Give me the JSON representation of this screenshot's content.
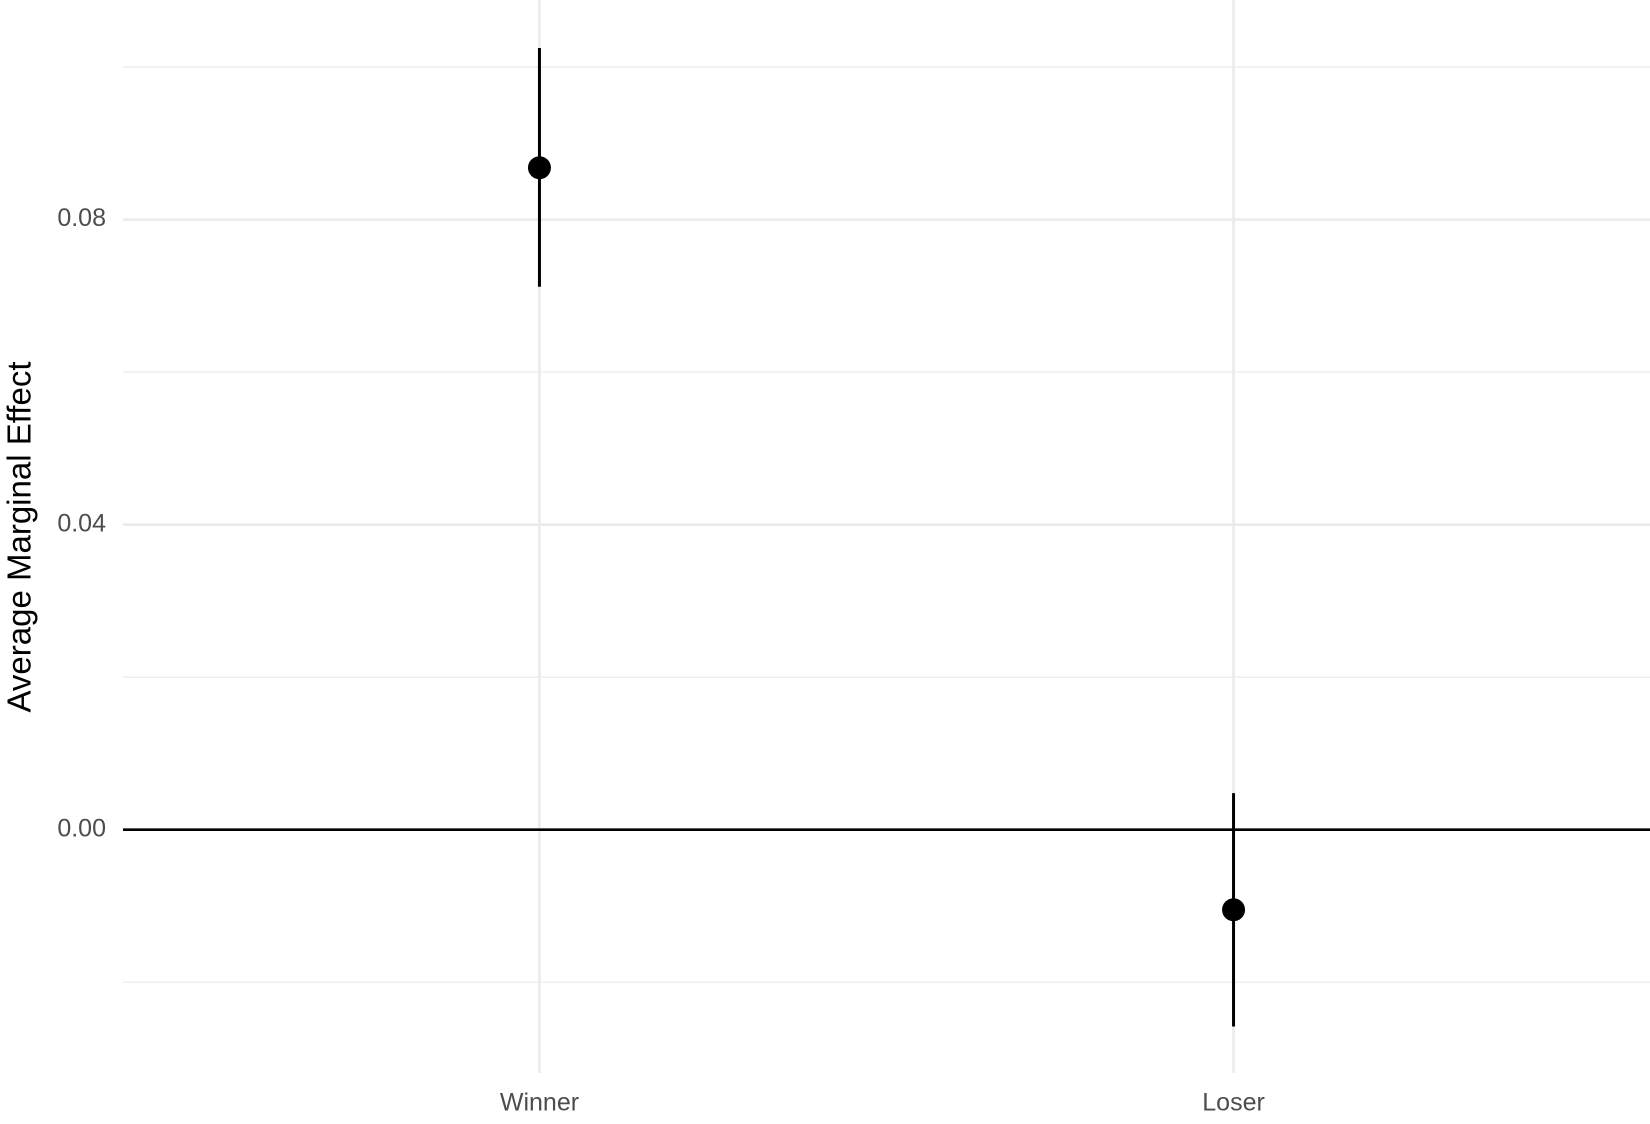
{
  "chart_data": {
    "type": "pointrange",
    "y_label": "Average Marginal Effect",
    "categories": [
      "Winner",
      "Loser"
    ],
    "values": [
      0.0868,
      -0.0105
    ],
    "lower": [
      0.0712,
      -0.0258
    ],
    "upper": [
      0.1025,
      0.0048
    ],
    "color": "#000000",
    "ylim": [
      -0.0319,
      0.1088
    ],
    "yticks": [
      {
        "value": 0,
        "label": "0.00"
      },
      {
        "value": 0.04,
        "label": "0.04"
      },
      {
        "value": 0.08,
        "label": "0.08"
      }
    ],
    "minor_yticks": [
      -0.02,
      0.02,
      0.06,
      0.1
    ],
    "hline": 0,
    "grid": true
  }
}
